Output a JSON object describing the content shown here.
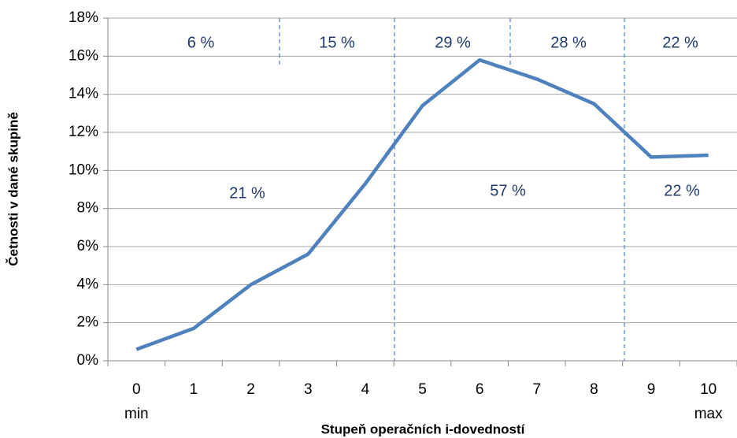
{
  "chart_data": {
    "type": "line",
    "x_label": "Stupeň operačních  i-dovedností",
    "y_label": "Četnosti v dané skupině",
    "categories": [
      "0",
      "1",
      "2",
      "3",
      "4",
      "5",
      "6",
      "7",
      "8",
      "9",
      "10"
    ],
    "x_end_labels": [
      "min",
      "max"
    ],
    "series": [
      {
        "name": null,
        "color": "#4f81bd",
        "values": [
          0.6,
          1.7,
          4.0,
          5.6,
          9.3,
          13.4,
          15.8,
          14.8,
          13.5,
          10.7,
          10.8
        ]
      }
    ],
    "ylim": [
      0,
      18
    ],
    "yticks": [
      {
        "value": 0,
        "label": "0%"
      },
      {
        "value": 2,
        "label": "2%"
      },
      {
        "value": 4,
        "label": "4%"
      },
      {
        "value": 6,
        "label": "6%"
      },
      {
        "value": 8,
        "label": "8%"
      },
      {
        "value": 10,
        "label": "10%"
      },
      {
        "value": 12,
        "label": "12%"
      },
      {
        "value": 14,
        "label": "14%"
      },
      {
        "value": 16,
        "label": "16%"
      },
      {
        "value": 18,
        "label": "18%"
      }
    ],
    "grid": true,
    "annotations": {
      "top": [
        "6 %",
        "15 %",
        "29 %",
        "28 %",
        "22 %"
      ],
      "bottom": [
        "21 %",
        "57 %",
        "22 %"
      ]
    }
  }
}
